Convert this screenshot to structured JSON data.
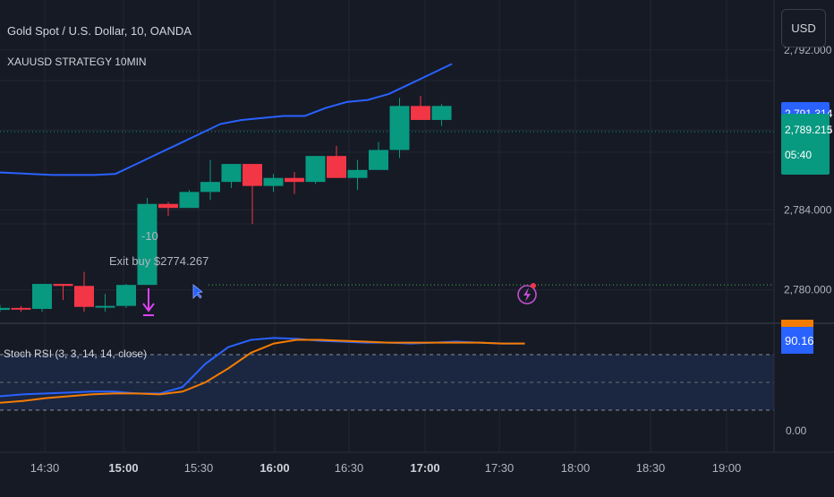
{
  "header": {
    "symbol_line": "Gold Spot / U.S. Dollar, 10, OANDA",
    "strategy_name": "XAUUSD STRATEGY 10MIN",
    "currency_button": "USD"
  },
  "colors": {
    "background": "#161a25",
    "bull": "#089981",
    "bear": "#f23645",
    "band": "#2962ff",
    "stoch_k": "#2962ff",
    "stoch_d": "#f57c00",
    "grid": "#232734",
    "text": "#b2b5be",
    "exit_arrow": "#e040fb",
    "entry_line": "#4caf50"
  },
  "price_badges": {
    "band_value": "2,791.314",
    "last_price": "2,789.215",
    "countdown": "05:40"
  },
  "annotations": {
    "trade_qty": "-10",
    "exit_label": "Exit buy $2774.267"
  },
  "stoch_panel": {
    "title": "Stoch RSI (3, 3, 14, 14, close)",
    "value_badge": "90.16",
    "ticks": [
      "0.00"
    ],
    "k": [
      35,
      37,
      38,
      39,
      40,
      40,
      38,
      38,
      45,
      70,
      88,
      96,
      98,
      97,
      95,
      94,
      93,
      93,
      92,
      93,
      94,
      93,
      92,
      92
    ],
    "d": [
      28,
      30,
      33,
      35,
      37,
      38,
      38,
      37,
      40,
      50,
      65,
      82,
      92,
      96,
      96,
      95,
      94,
      93,
      93,
      93,
      93,
      93,
      92,
      92
    ]
  },
  "chart_data": {
    "type": "candlestick",
    "x_ticks": [
      "14:30",
      "15:00",
      "15:30",
      "16:00",
      "16:30",
      "17:00",
      "17:30",
      "18:00",
      "18:30",
      "19:00"
    ],
    "y_ticks": [
      2780.0,
      2784.0,
      2788.0,
      2792.0
    ],
    "y_tick_labels": [
      "2,780.000",
      "2,784.000",
      "2,788.000",
      "2,792.000"
    ],
    "ylim": [
      2778.6,
      2794.5
    ],
    "candles": [
      {
        "o": 2779.0,
        "h": 2779.25,
        "l": 2778.9,
        "c": 2779.1
      },
      {
        "o": 2779.1,
        "h": 2779.2,
        "l": 2778.9,
        "c": 2779.05
      },
      {
        "o": 2779.05,
        "h": 2780.3,
        "l": 2778.9,
        "c": 2780.3
      },
      {
        "o": 2780.3,
        "h": 2780.3,
        "l": 2779.5,
        "c": 2780.2
      },
      {
        "o": 2780.2,
        "h": 2780.9,
        "l": 2778.9,
        "c": 2779.15
      },
      {
        "o": 2779.15,
        "h": 2779.8,
        "l": 2778.9,
        "c": 2779.2
      },
      {
        "o": 2779.2,
        "h": 2780.3,
        "l": 2779.1,
        "c": 2780.25
      },
      {
        "o": 2780.25,
        "h": 2784.6,
        "l": 2780.25,
        "c": 2784.3
      },
      {
        "o": 2784.3,
        "h": 2784.4,
        "l": 2783.7,
        "c": 2784.1
      },
      {
        "o": 2784.1,
        "h": 2785.0,
        "l": 2784.1,
        "c": 2784.9
      },
      {
        "o": 2784.9,
        "h": 2786.5,
        "l": 2784.5,
        "c": 2785.4
      },
      {
        "o": 2785.4,
        "h": 2786.3,
        "l": 2785.1,
        "c": 2786.3
      },
      {
        "o": 2786.3,
        "h": 2786.3,
        "l": 2783.3,
        "c": 2785.2
      },
      {
        "o": 2785.2,
        "h": 2785.8,
        "l": 2784.9,
        "c": 2785.6
      },
      {
        "o": 2785.6,
        "h": 2785.9,
        "l": 2784.8,
        "c": 2785.4
      },
      {
        "o": 2785.4,
        "h": 2786.7,
        "l": 2785.3,
        "c": 2786.7
      },
      {
        "o": 2786.7,
        "h": 2787.2,
        "l": 2785.6,
        "c": 2785.6
      },
      {
        "o": 2785.6,
        "h": 2786.5,
        "l": 2785.0,
        "c": 2786.0
      },
      {
        "o": 2786.0,
        "h": 2787.4,
        "l": 2786.0,
        "c": 2787.0
      },
      {
        "o": 2787.0,
        "h": 2789.6,
        "l": 2786.6,
        "c": 2789.2
      },
      {
        "o": 2789.2,
        "h": 2789.7,
        "l": 2788.6,
        "c": 2788.5
      },
      {
        "o": 2788.5,
        "h": 2789.3,
        "l": 2788.2,
        "c": 2789.2
      }
    ],
    "upper_band": [
      2785.9,
      2785.85,
      2785.8,
      2785.75,
      2785.75,
      2785.75,
      2785.8,
      2786.3,
      2786.8,
      2787.3,
      2787.8,
      2788.3,
      2788.5,
      2788.6,
      2788.7,
      2788.7,
      2789.1,
      2789.4,
      2789.5,
      2789.8,
      2790.3,
      2790.8,
      2791.3
    ],
    "entry_level": 2780.25
  }
}
